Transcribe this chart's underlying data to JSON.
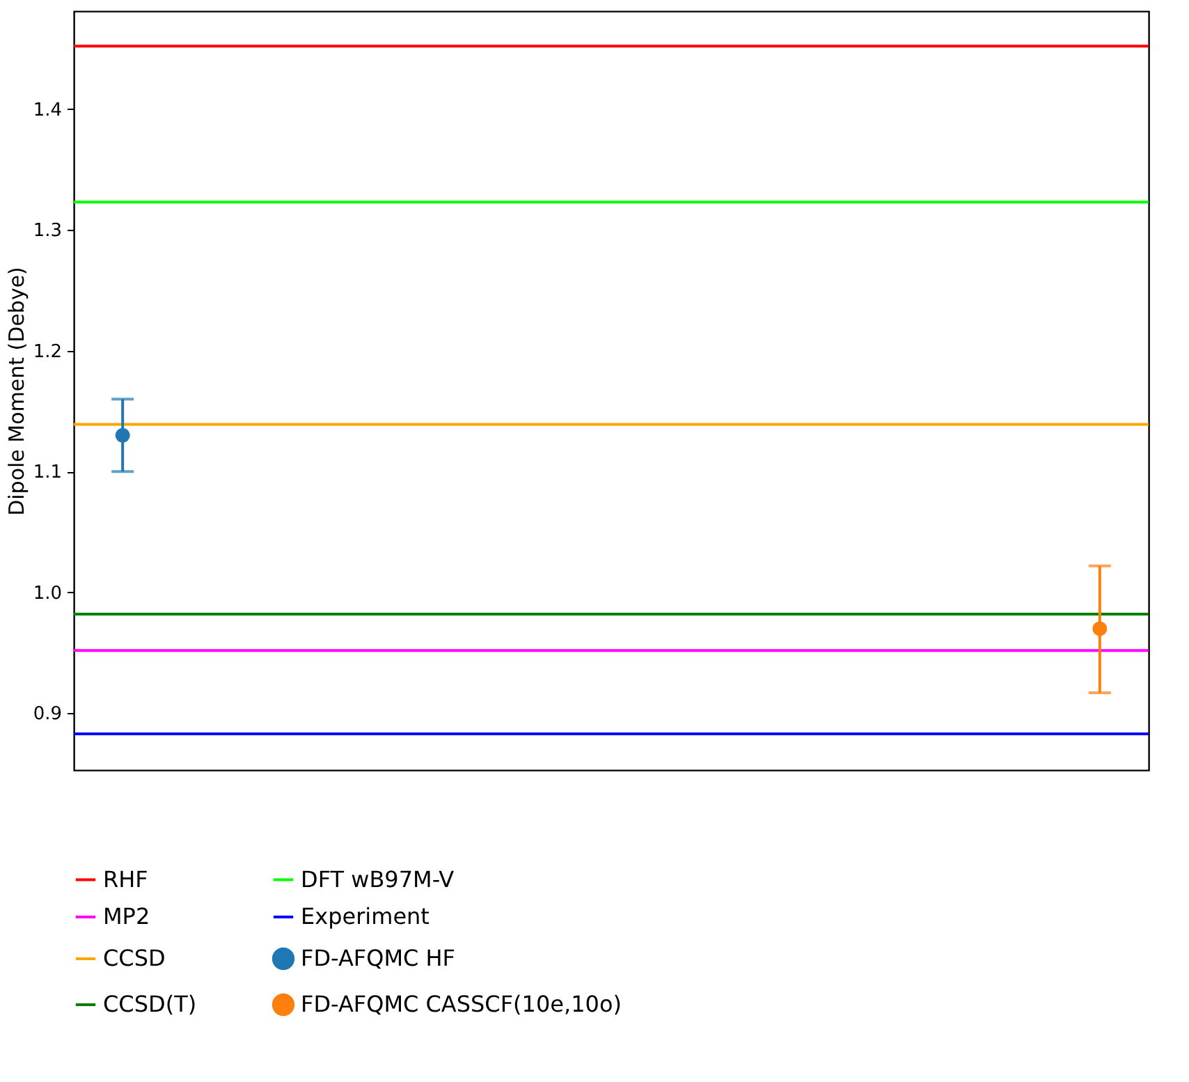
{
  "chart_data": {
    "type": "scatter",
    "ylabel": "Dipole Moment (Debye)",
    "categories": [
      null,
      null
    ],
    "ylim": [
      0.853,
      1.481
    ],
    "yticks": [
      0.9,
      {
        "value": 1.0,
        "label": "1.0"
      },
      1.1,
      1.2,
      1.3,
      1.4
    ],
    "legend": "bottom",
    "marker": "circle",
    "ref_lines": [
      {
        "axis": "y",
        "value": 1.452,
        "label": "RHF",
        "color": "#ff0000"
      },
      {
        "axis": "y",
        "value": 0.952,
        "label": "MP2",
        "color": "#ff00ff"
      },
      {
        "axis": "y",
        "value": 1.139,
        "label": "CCSD",
        "color": "#ffa500"
      },
      {
        "axis": "y",
        "value": 0.982,
        "label": "CCSD(T)",
        "color": "#008000"
      },
      {
        "axis": "y",
        "value": 1.323,
        "label": "DFT wB97M-V",
        "color": "#00ff00"
      },
      {
        "axis": "y",
        "value": 0.883,
        "label": "Experiment",
        "color": "#0000ff"
      }
    ],
    "series": [
      {
        "name": "FD-AFQMC HF",
        "color": "#1f77b4",
        "values": [
          1.13,
          null
        ],
        "errors": [
          0.03,
          null
        ]
      },
      {
        "name": "FD-AFQMC CASSCF(10e,10o)",
        "color": "#ff7f0e",
        "values": [
          null,
          0.97
        ],
        "errors": [
          null,
          [
            0.917,
            1.022
          ]
        ]
      }
    ]
  }
}
